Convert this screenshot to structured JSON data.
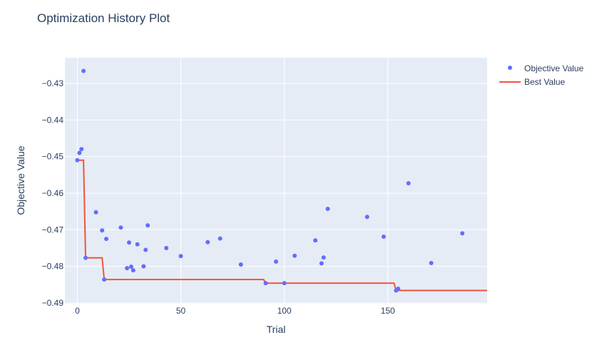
{
  "chart_data": {
    "type": "scatter",
    "title": "Optimization History Plot",
    "xlabel": "Trial",
    "ylabel": "Objective Value",
    "xlim": [
      -6,
      198
    ],
    "ylim": [
      -0.4902,
      -0.423
    ],
    "xticks": [
      0,
      50,
      100,
      150
    ],
    "yticks": [
      -0.43,
      -0.44,
      -0.45,
      -0.46,
      -0.47,
      -0.48,
      -0.49
    ],
    "grid": true,
    "legend_position": "top-right",
    "colors": {
      "objective": "#636efa",
      "best": "#ef553b",
      "plot_bg": "#e5ecf6",
      "grid": "#ffffff",
      "text": "#2a3f5f"
    },
    "series": [
      {
        "name": "Objective Value",
        "mode": "markers",
        "x": [
          0,
          1,
          2,
          3,
          4,
          9,
          12,
          13,
          14,
          21,
          24,
          25,
          26,
          27,
          29,
          32,
          33,
          34,
          43,
          50,
          63,
          69,
          79,
          91,
          96,
          100,
          105,
          115,
          118,
          119,
          121,
          140,
          148,
          154,
          155,
          160,
          171,
          186
        ],
        "y": [
          -0.451,
          -0.449,
          -0.448,
          -0.4266,
          -0.4777,
          -0.4652,
          -0.4702,
          -0.4836,
          -0.4725,
          -0.4694,
          -0.4805,
          -0.4735,
          -0.4801,
          -0.4811,
          -0.474,
          -0.48,
          -0.4755,
          -0.4688,
          -0.475,
          -0.4772,
          -0.4734,
          -0.4724,
          -0.4795,
          -0.4846,
          -0.4787,
          -0.4846,
          -0.4771,
          -0.4729,
          -0.4792,
          -0.4776,
          -0.4643,
          -0.4665,
          -0.4719,
          -0.4866,
          -0.4861,
          -0.4573,
          -0.4791,
          -0.471
        ]
      },
      {
        "name": "Best Value",
        "mode": "lines",
        "x": [
          0,
          3,
          4,
          12,
          13,
          90,
          91,
          153,
          154,
          198
        ],
        "y": [
          -0.451,
          -0.451,
          -0.4777,
          -0.4777,
          -0.4836,
          -0.4836,
          -0.4846,
          -0.4846,
          -0.4866,
          -0.4866
        ]
      }
    ]
  }
}
